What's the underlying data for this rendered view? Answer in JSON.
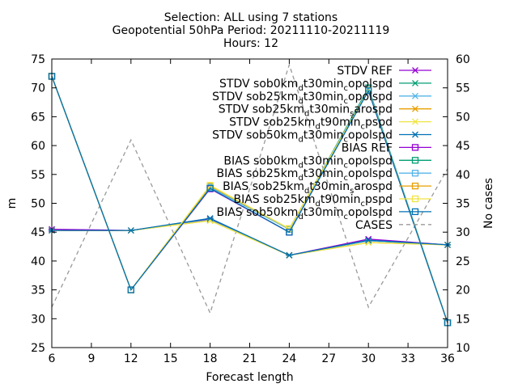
{
  "chart_data": {
    "type": "line",
    "title": [
      "Selection: ALL using     7 stations",
      "Geopotential 50hPa   Period: 20211110-20211119",
      "Hours: 12"
    ],
    "xlabel": "Forecast length",
    "ylabel": "m",
    "y2label": "No cases",
    "x": [
      6,
      12,
      18,
      24,
      30,
      36
    ],
    "xticks": [
      6,
      9,
      12,
      15,
      18,
      21,
      24,
      27,
      30,
      33,
      36
    ],
    "xlim": [
      6,
      36
    ],
    "ylim": [
      25,
      75
    ],
    "yticks": [
      25,
      30,
      35,
      40,
      45,
      50,
      55,
      60,
      65,
      70,
      75
    ],
    "y2lim": [
      10,
      60
    ],
    "y2ticks": [
      10,
      15,
      20,
      25,
      30,
      35,
      40,
      45,
      50,
      55,
      60
    ],
    "legend_position": "top-right",
    "series": [
      {
        "name": "STDV REF",
        "axis": "y",
        "color": "#9400d3",
        "marker": "x",
        "values": [
          45.5,
          45.3,
          47.3,
          41.0,
          43.8,
          42.8
        ]
      },
      {
        "name": "STDV sob0km_d t30min_c opolspd",
        "axis": "y",
        "color": "#009e73",
        "marker": "x",
        "values": [
          45.3,
          45.3,
          47.1,
          41.0,
          43.5,
          42.8
        ]
      },
      {
        "name": "STDV sob25km_d t30min_c opolspd",
        "axis": "y",
        "color": "#56b4e9",
        "marker": "x",
        "values": [
          45.3,
          45.3,
          47.1,
          41.0,
          43.5,
          42.8
        ]
      },
      {
        "name": "STDV sob25km_d t30min_s arospd",
        "axis": "y",
        "color": "#e69f00",
        "marker": "x",
        "values": [
          45.3,
          45.3,
          47.0,
          41.0,
          43.2,
          42.8
        ]
      },
      {
        "name": "STDV sob25km_d t90min_c pspd",
        "axis": "y",
        "color": "#f0e442",
        "marker": "x",
        "values": [
          45.3,
          45.3,
          47.0,
          41.0,
          43.2,
          42.8
        ]
      },
      {
        "name": "STDV sob50km_d t30min_c opolspd",
        "axis": "y",
        "color": "#0072b2",
        "marker": "x",
        "values": [
          45.3,
          45.3,
          47.4,
          41.0,
          43.6,
          42.8
        ]
      },
      {
        "name": "BIAS REF",
        "axis": "y",
        "color": "#9400d3",
        "marker": "square",
        "values": [
          72.0,
          35.0,
          52.5,
          45.0,
          69.5,
          29.3
        ]
      },
      {
        "name": "BIAS sob0km_d t30min_c opolspd",
        "axis": "y",
        "color": "#009e73",
        "marker": "square",
        "values": [
          72.0,
          35.0,
          52.8,
          45.5,
          70.0,
          29.3
        ]
      },
      {
        "name": "BIAS sob25km_d t30min_c opolspd",
        "axis": "y",
        "color": "#56b4e9",
        "marker": "square",
        "values": [
          72.0,
          35.0,
          52.8,
          45.5,
          69.8,
          29.3
        ]
      },
      {
        "name": "BIAS sob25km_d t30min_s arospd",
        "axis": "y",
        "color": "#e69f00",
        "marker": "square",
        "values": [
          72.0,
          35.0,
          53.0,
          45.6,
          69.6,
          29.3
        ]
      },
      {
        "name": "BIAS sob25km_d t90min_c pspd",
        "axis": "y",
        "color": "#f0e442",
        "marker": "square",
        "values": [
          72.0,
          35.0,
          53.1,
          45.6,
          69.6,
          29.3
        ]
      },
      {
        "name": "BIAS sob50km_d t30min_c opolspd",
        "axis": "y",
        "color": "#0072b2",
        "marker": "square",
        "values": [
          72.0,
          35.0,
          52.6,
          45.0,
          69.5,
          29.3
        ]
      },
      {
        "name": "CASES",
        "axis": "y2",
        "color": "#999999",
        "marker": "none",
        "dashed": true,
        "values": [
          17,
          46,
          16,
          59,
          17,
          41
        ]
      }
    ]
  }
}
